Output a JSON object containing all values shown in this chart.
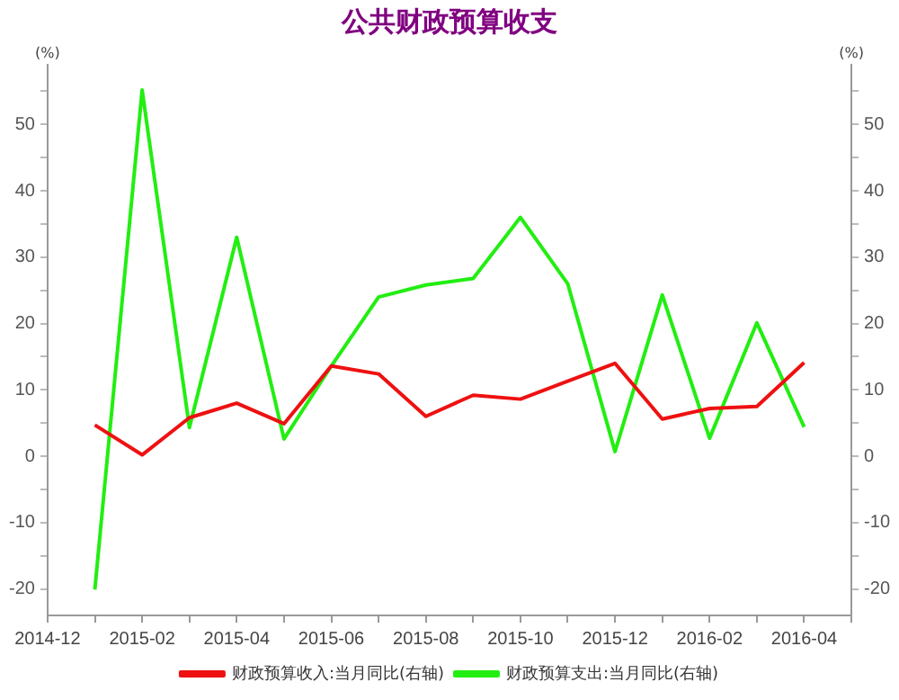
{
  "chart_data": {
    "type": "line",
    "title": "公共财政预算收支",
    "ylabel": "(%)",
    "y2label": "(%)",
    "x": [
      "2015-01",
      "2015-02",
      "2015-03",
      "2015-04",
      "2015-05",
      "2015-06",
      "2015-07",
      "2015-08",
      "2015-09",
      "2015-10",
      "2015-11",
      "2015-12",
      "2016-01",
      "2016-02",
      "2016-03",
      "2016-04"
    ],
    "series": [
      {
        "name": "财政预算收入:当月同比(右轴)",
        "color": "#ee1111",
        "axis": "y2",
        "values": [
          4.7,
          0.2,
          5.8,
          8.0,
          4.9,
          13.6,
          12.4,
          6.0,
          9.2,
          8.6,
          11.3,
          14.0,
          5.6,
          7.2,
          7.5,
          14.1
        ]
      },
      {
        "name": "财政预算支出:当月同比(右轴)",
        "color": "#22ee11",
        "axis": "y2",
        "values": [
          -20.1,
          55.2,
          4.3,
          33.0,
          2.6,
          13.6,
          24.0,
          25.8,
          26.8,
          36.0,
          26.0,
          0.7,
          24.3,
          2.7,
          20.1,
          4.4
        ]
      }
    ],
    "xlim": [
      "2014-12",
      "2016-05"
    ],
    "xticks": [
      {
        "value": "2014-12",
        "label": "2014-12"
      },
      {
        "value": "2015-01",
        "label": null
      },
      {
        "value": "2015-02",
        "label": "2015-02"
      },
      {
        "value": "2015-03",
        "label": null
      },
      {
        "value": "2015-04",
        "label": "2015-04"
      },
      {
        "value": "2015-05",
        "label": null
      },
      {
        "value": "2015-06",
        "label": "2015-06"
      },
      {
        "value": "2015-07",
        "label": null
      },
      {
        "value": "2015-08",
        "label": "2015-08"
      },
      {
        "value": "2015-09",
        "label": null
      },
      {
        "value": "2015-10",
        "label": "2015-10"
      },
      {
        "value": "2015-11",
        "label": null
      },
      {
        "value": "2015-12",
        "label": "2015-12"
      },
      {
        "value": "2016-01",
        "label": null
      },
      {
        "value": "2016-02",
        "label": "2016-02"
      },
      {
        "value": "2016-03",
        "label": null
      },
      {
        "value": "2016-04",
        "label": "2016-04"
      },
      {
        "value": "2016-05",
        "label": null
      }
    ],
    "ylim": [
      -24,
      59
    ],
    "yticks": [
      -20,
      {
        "value": -15,
        "label": null
      },
      -10,
      {
        "value": -5,
        "label": null
      },
      0,
      {
        "value": 5,
        "label": null
      },
      10,
      {
        "value": 15,
        "label": null
      },
      20,
      {
        "value": 25,
        "label": null
      },
      30,
      {
        "value": 35,
        "label": null
      },
      40,
      {
        "value": 45,
        "label": null
      },
      50,
      {
        "value": 55,
        "label": null
      }
    ],
    "y2lim": [
      -24,
      59
    ],
    "y2ticks": [
      -20,
      {
        "value": -15,
        "label": null
      },
      -10,
      {
        "value": -5,
        "label": null
      },
      0,
      {
        "value": 5,
        "label": null
      },
      10,
      {
        "value": 15,
        "label": null
      },
      20,
      {
        "value": 25,
        "label": null
      },
      30,
      {
        "value": 35,
        "label": null
      },
      40,
      {
        "value": 45,
        "label": null
      },
      50,
      {
        "value": 55,
        "label": null
      }
    ],
    "grid": false,
    "legend": "bottom",
    "marker": "none",
    "line_style": "solid"
  }
}
